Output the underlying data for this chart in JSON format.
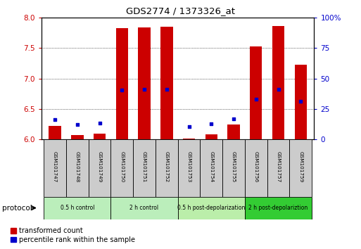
{
  "title": "GDS2774 / 1373326_at",
  "samples": [
    "GSM101747",
    "GSM101748",
    "GSM101749",
    "GSM101750",
    "GSM101751",
    "GSM101752",
    "GSM101753",
    "GSM101754",
    "GSM101755",
    "GSM101756",
    "GSM101757",
    "GSM101759"
  ],
  "red_bar_top": [
    6.22,
    6.07,
    6.1,
    7.82,
    7.84,
    7.85,
    6.02,
    6.08,
    6.25,
    7.52,
    7.86,
    7.22
  ],
  "red_bar_base": 6.0,
  "blue_y": [
    6.32,
    6.25,
    6.27,
    6.81,
    6.82,
    6.82,
    6.21,
    6.26,
    6.34,
    6.66,
    6.82,
    6.62
  ],
  "ylim_left": [
    6.0,
    8.0
  ],
  "ylim_right": [
    0,
    100
  ],
  "yticks_left": [
    6.0,
    6.5,
    7.0,
    7.5,
    8.0
  ],
  "yticks_right": [
    0,
    25,
    50,
    75,
    100
  ],
  "groups": [
    {
      "label": "0.5 h control",
      "start": 0,
      "end": 3,
      "color": "#bbeebb"
    },
    {
      "label": "2 h control",
      "start": 3,
      "end": 6,
      "color": "#bbeebb"
    },
    {
      "label": "0.5 h post-depolarization",
      "start": 6,
      "end": 9,
      "color": "#bbeeaa"
    },
    {
      "label": "2 h post-depolariztion",
      "start": 9,
      "end": 12,
      "color": "#33cc33"
    }
  ],
  "bar_color": "#cc0000",
  "blue_color": "#0000cc",
  "bar_width": 0.55,
  "legend_red": "transformed count",
  "legend_blue": "percentile rank within the sample",
  "protocol_label": "protocol",
  "left_tick_color": "#cc0000",
  "right_tick_color": "#0000cc",
  "sample_box_color": "#cccccc",
  "plot_bg": "#ffffff"
}
